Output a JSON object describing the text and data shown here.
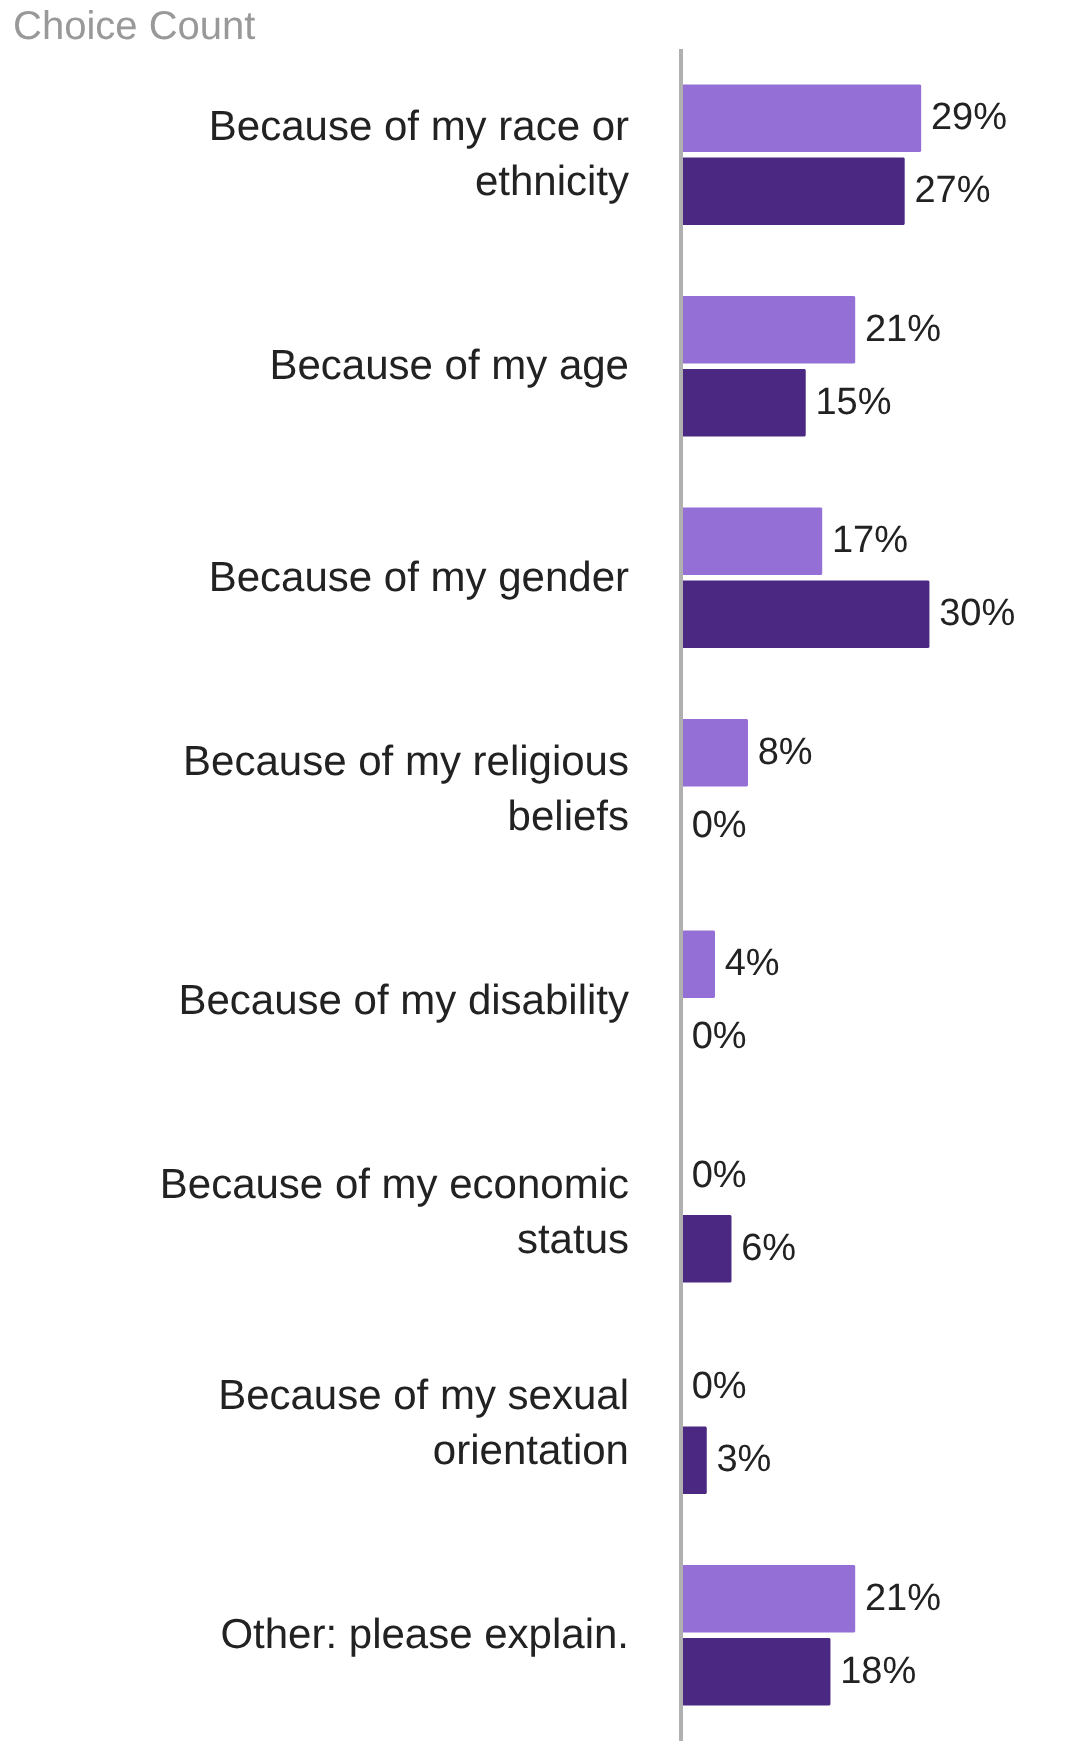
{
  "chart_data": {
    "type": "bar",
    "orientation": "horizontal",
    "title": "Choice Count",
    "categories": [
      "Because of my race or ethnicity",
      "Because of my age",
      "Because of my gender",
      "Because of my religious beliefs",
      "Because of my disability",
      "Because of my economic status",
      "Because of my sexual orientation",
      "Other: please explain."
    ],
    "series": [
      {
        "color": "#9470d6",
        "values": [
          29,
          21,
          17,
          8,
          4,
          0,
          0,
          21
        ],
        "value_labels": [
          "29%",
          "21%",
          "17%",
          "8%",
          "4%",
          "0%",
          "0%",
          "21%"
        ]
      },
      {
        "color": "#4b2882",
        "values": [
          27,
          15,
          30,
          0,
          0,
          6,
          3,
          18
        ],
        "value_labels": [
          "27%",
          "15%",
          "30%",
          "0%",
          "0%",
          "6%",
          "3%",
          "18%"
        ]
      }
    ],
    "tick_labels": "y",
    "grid": false
  }
}
